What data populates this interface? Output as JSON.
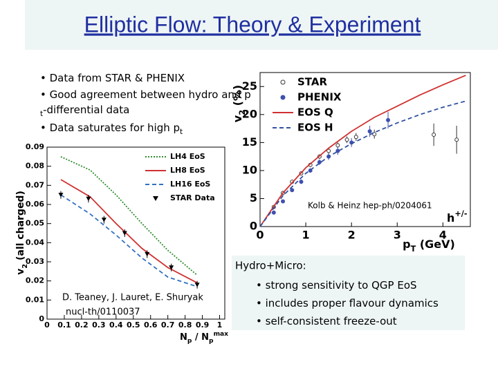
{
  "title": "Elliptic Flow: Theory & Experiment",
  "bullets": [
    [
      "Data from STAR & PHENIX"
    ],
    [
      "Good agreement between hydro and p",
      "t",
      "-differential data"
    ],
    [
      "Data saturates for high p",
      "t"
    ]
  ],
  "notes": {
    "heading": "Hydro+Micro:",
    "items": [
      "strong sensitivity to QGP EoS",
      "includes proper flavour dynamics",
      "self-consistent freeze-out"
    ]
  },
  "chart_data": [
    {
      "type": "line",
      "xlabel": [
        "N",
        "p",
        " / N",
        "p",
        "max"
      ],
      "ylabel": [
        "v",
        "2",
        " (all charged)"
      ],
      "xlim": [
        0,
        1.03
      ],
      "ylim": [
        0,
        0.09
      ],
      "xticks": [
        0,
        0.1,
        0.2,
        0.3,
        0.4,
        0.5,
        0.6,
        0.7,
        0.8,
        0.9,
        1
      ],
      "yticks": [
        0,
        0.01,
        0.02,
        0.03,
        0.04,
        0.05,
        0.06,
        0.07,
        0.08,
        0.09
      ],
      "legend": "upper right",
      "annotation": [
        "D. Teaney, J. Lauret, E. Shuryak",
        "nucl-th/0110037"
      ],
      "series": [
        {
          "name": "LH4 EoS",
          "color": "#2e8b2e",
          "line": "dotted",
          "x": [
            0.08,
            0.25,
            0.4,
            0.55,
            0.7,
            0.87
          ],
          "values": [
            0.085,
            0.078,
            0.065,
            0.05,
            0.036,
            0.023
          ]
        },
        {
          "name": "LH8 EoS",
          "color": "#d03030",
          "line": "solid",
          "x": [
            0.08,
            0.25,
            0.4,
            0.55,
            0.7,
            0.87
          ],
          "values": [
            0.073,
            0.064,
            0.05,
            0.037,
            0.027,
            0.019
          ]
        },
        {
          "name": "LH16 EoS",
          "color": "#3070c0",
          "line": "dashed",
          "x": [
            0.08,
            0.25,
            0.4,
            0.55,
            0.7,
            0.87
          ],
          "values": [
            0.065,
            0.055,
            0.044,
            0.032,
            0.022,
            0.017
          ]
        },
        {
          "name": "STAR Data",
          "color": "#000000",
          "marker": "triangle",
          "x": [
            0.08,
            0.24,
            0.33,
            0.45,
            0.58,
            0.72,
            0.87
          ],
          "values": [
            0.065,
            0.063,
            0.052,
            0.045,
            0.034,
            0.027,
            0.018
          ],
          "errors": [
            0.002,
            0.002,
            0.002,
            0.002,
            0.002,
            0.002,
            0.002
          ]
        }
      ]
    },
    {
      "type": "line",
      "xlabel": [
        "p",
        "T",
        " (GeV)"
      ],
      "ylabel": [
        "v",
        "2",
        " (%)"
      ],
      "xlim": [
        0,
        4.6
      ],
      "ylim": [
        0,
        27.5
      ],
      "xticks": [
        0,
        1,
        2,
        3,
        4
      ],
      "yticks": [
        0,
        5,
        10,
        15,
        20,
        25
      ],
      "legend": "upper left",
      "annotation": [
        "Kolb & Heinz hep-ph/0204061"
      ],
      "particle": [
        "h",
        "+/-"
      ],
      "series": [
        {
          "name": "STAR",
          "color": "#333333",
          "marker": "open-circle",
          "x": [
            0.3,
            0.5,
            0.7,
            0.9,
            1.1,
            1.3,
            1.5,
            1.7,
            1.9,
            2.1,
            2.5,
            3.8,
            4.3
          ],
          "values": [
            3.5,
            6,
            8,
            9.5,
            11,
            12.5,
            13.5,
            14.5,
            15.5,
            16,
            16.5,
            16.4,
            15.5
          ],
          "errors": [
            0.3,
            0.3,
            0.3,
            0.3,
            0.4,
            0.4,
            0.5,
            0.5,
            0.6,
            0.7,
            0.8,
            2,
            2.5
          ]
        },
        {
          "name": "PHENIX",
          "color": "#4050b0",
          "marker": "filled-circle",
          "x": [
            0.3,
            0.5,
            0.7,
            0.9,
            1.1,
            1.3,
            1.5,
            1.7,
            2.0,
            2.4,
            2.8
          ],
          "values": [
            2.5,
            4.5,
            6.5,
            8,
            10,
            11.5,
            12.5,
            13.5,
            15,
            17,
            19
          ],
          "errors": [
            0.3,
            0.3,
            0.3,
            0.4,
            0.4,
            0.5,
            0.6,
            0.7,
            0.8,
            1,
            1.5
          ]
        },
        {
          "name": "EOS Q",
          "color": "#d03030",
          "line": "solid",
          "x": [
            0,
            0.5,
            1,
            1.5,
            2,
            2.5,
            3,
            3.5,
            4,
            4.5
          ],
          "values": [
            0,
            6,
            10.5,
            14,
            17,
            19.5,
            21.5,
            23.5,
            25.3,
            27
          ]
        },
        {
          "name": "EOS H",
          "color": "#3050a0",
          "line": "dashed",
          "x": [
            0,
            0.5,
            1,
            1.5,
            2,
            2.5,
            3,
            3.5,
            4,
            4.5
          ],
          "values": [
            0,
            5.5,
            9.5,
            12.5,
            14.8,
            16.8,
            18.5,
            20,
            21.3,
            22.4
          ]
        }
      ]
    }
  ]
}
